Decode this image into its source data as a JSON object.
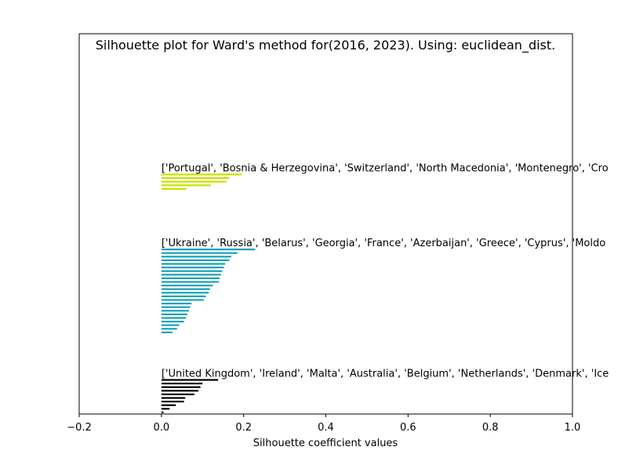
{
  "chart_data": {
    "type": "bar",
    "orientation": "horizontal",
    "title": "Silhouette plot for Ward's method for(2016, 2023). Using: euclidean_dist.",
    "xlabel": "Silhouette coefficient values",
    "ylabel": "",
    "xlim": [
      -0.2,
      1.0
    ],
    "xticks": [
      "−0.2",
      "0.0",
      "0.2",
      "0.4",
      "0.6",
      "0.8",
      "1.0"
    ],
    "xtick_values": [
      -0.2,
      0.0,
      0.2,
      0.4,
      0.6,
      0.8,
      1.0
    ],
    "grid": false,
    "clusters": [
      {
        "label": "['United Kingdom', 'Ireland', 'Malta', 'Australia', 'Belgium', 'Netherlands', 'Denmark', 'Ice",
        "color": "#000000",
        "values": [
          0.138,
          0.1,
          0.095,
          0.09,
          0.08,
          0.058,
          0.055,
          0.035,
          0.02,
          0.005
        ]
      },
      {
        "label": "['Ukraine', 'Russia', 'Belarus', 'Georgia', 'France', 'Azerbaijan', 'Greece', 'Cyprus', 'Moldo",
        "color": "#17a2b8",
        "values": [
          0.228,
          0.185,
          0.17,
          0.165,
          0.155,
          0.152,
          0.148,
          0.145,
          0.142,
          0.14,
          0.125,
          0.118,
          0.115,
          0.108,
          0.103,
          0.073,
          0.07,
          0.067,
          0.063,
          0.06,
          0.055,
          0.043,
          0.038,
          0.027
        ]
      },
      {
        "label": "['Portugal', 'Bosnia & Herzegovina', 'Switzerland', 'North Macedonia', 'Montenegro', 'Cro",
        "color": "#c8e000",
        "values": [
          0.195,
          0.165,
          0.158,
          0.12,
          0.06
        ]
      }
    ]
  }
}
